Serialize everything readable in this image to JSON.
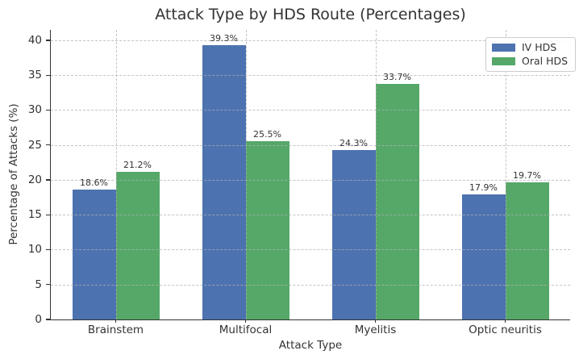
{
  "title": "Attack Type by HDS Route (Percentages)",
  "axes": {
    "xlabel": "Attack Type",
    "ylabel": "Percentage of Attacks (%)"
  },
  "legend": {
    "position": "upper right",
    "items": [
      {
        "label": "IV HDS",
        "color": "#4C72B0"
      },
      {
        "label": "Oral HDS",
        "color": "#55A868"
      }
    ]
  },
  "chart_data": {
    "type": "bar",
    "title": "Attack Type by HDS Route (Percentages)",
    "xlabel": "Attack Type",
    "ylabel": "Percentage of Attacks (%)",
    "categories": [
      "Brainstem",
      "Multifocal",
      "Myelitis",
      "Optic neuritis"
    ],
    "series": [
      {
        "name": "IV HDS",
        "color": "#4C72B0",
        "values": [
          18.6,
          39.3,
          24.3,
          17.9
        ],
        "value_labels": [
          "18.6%",
          "39.3%",
          "24.3%",
          "17.9%"
        ]
      },
      {
        "name": "Oral HDS",
        "color": "#55A868",
        "values": [
          21.2,
          25.5,
          33.7,
          19.7
        ],
        "value_labels": [
          "21.2%",
          "25.5%",
          "33.7%",
          "19.7%"
        ]
      }
    ],
    "ylim": [
      0,
      41.5
    ],
    "yticks": [
      0,
      5,
      10,
      15,
      20,
      25,
      30,
      35,
      40
    ],
    "grid": "dashed gridlines on both axes, drawn over bars",
    "legend_position": "upper right"
  }
}
